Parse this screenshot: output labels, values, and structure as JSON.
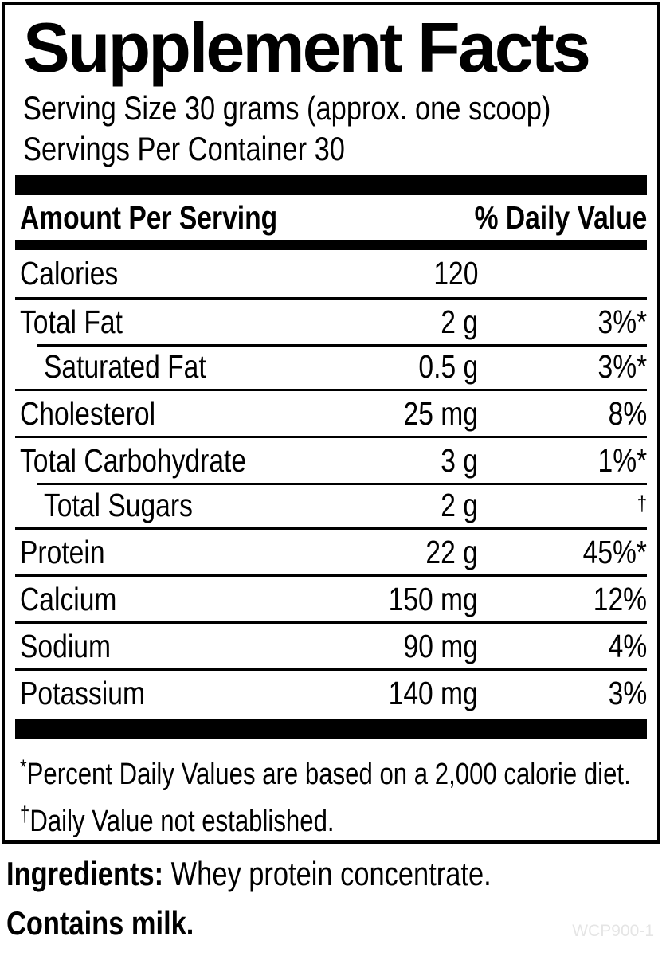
{
  "panel": {
    "title": "Supplement Facts",
    "serving_size": "Serving Size 30 grams (approx. one scoop)",
    "servings_per_container": "Servings Per Container 30",
    "header": {
      "amount_label": "Amount Per Serving",
      "dv_label": "% Daily Value"
    },
    "rows": [
      {
        "name": "Calories",
        "amount": "120",
        "dv": ""
      },
      {
        "name": "Total Fat",
        "amount": "2 g",
        "dv": "3%*"
      },
      {
        "name": "Saturated Fat",
        "amount": "0.5 g",
        "dv": "3%*"
      },
      {
        "name": "Cholesterol",
        "amount": "25 mg",
        "dv": "8%"
      },
      {
        "name": "Total Carbohydrate",
        "amount": "3 g",
        "dv": "1%*"
      },
      {
        "name": "Total Sugars",
        "amount": "2 g",
        "dv": "†"
      },
      {
        "name": "Protein",
        "amount": "22 g",
        "dv": "45%*"
      },
      {
        "name": "Calcium",
        "amount": "150 mg",
        "dv": "12%"
      },
      {
        "name": "Sodium",
        "amount": "90 mg",
        "dv": "4%"
      },
      {
        "name": "Potassium",
        "amount": "140 mg",
        "dv": "3%"
      }
    ],
    "footnotes": [
      {
        "symbol": "*",
        "text": "Percent Daily Values are based on a 2,000 calorie diet."
      },
      {
        "symbol": "†",
        "text": "Daily Value not established."
      }
    ]
  },
  "below": {
    "ingredients_label": "Ingredients:",
    "ingredients_text": " Whey protein concentrate.",
    "contains": "Contains milk.",
    "product_code": "WCP900-1"
  },
  "colors": {
    "text": "#000000",
    "background": "#ffffff",
    "product_code_gray": "#e5e5e5"
  }
}
